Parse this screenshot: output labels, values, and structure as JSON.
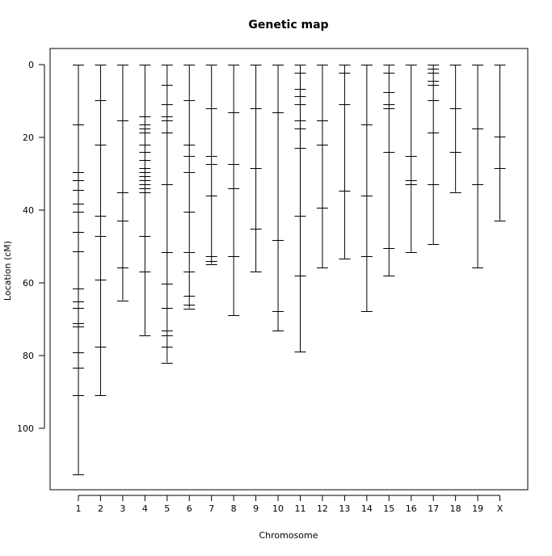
{
  "chart_data": {
    "type": "genetic_map",
    "title": "Genetic map",
    "xlabel": "Chromosome",
    "ylabel": "Location (cM)",
    "ylim": [
      0,
      117
    ],
    "y_reversed": true,
    "yticks": [
      0,
      20,
      40,
      60,
      80,
      100
    ],
    "grid": false,
    "chromosomes": [
      {
        "name": "1",
        "markers": [
          0,
          16.4,
          29.5,
          31.7,
          34.4,
          38.3,
          40.4,
          46.1,
          51.4,
          61.5,
          65,
          66.9,
          71.1,
          72,
          79,
          83.3,
          90.9,
          112.6
        ]
      },
      {
        "name": "2",
        "markers": [
          0,
          9.8,
          21.9,
          41.5,
          47,
          59.1,
          77.6,
          90.9
        ]
      },
      {
        "name": "3",
        "markers": [
          0,
          15.3,
          35,
          42.8,
          55.8,
          64.8
        ]
      },
      {
        "name": "4",
        "markers": [
          0,
          14.2,
          16.4,
          17.5,
          18.6,
          21.9,
          24.1,
          26.3,
          28.5,
          29.6,
          30.7,
          31.8,
          32.8,
          34,
          35.1,
          47.1,
          56.9,
          74.4
        ]
      },
      {
        "name": "5",
        "markers": [
          0,
          5.5,
          10.9,
          14.2,
          15.3,
          18.6,
          32.8,
          51.6,
          60.2,
          66.9,
          73.2,
          74.4,
          77.6,
          81.9
        ]
      },
      {
        "name": "6",
        "markers": [
          0,
          9.8,
          22,
          25.2,
          29.6,
          40.5,
          51.6,
          56.9,
          63.6,
          66.1,
          67
        ]
      },
      {
        "name": "7",
        "markers": [
          0,
          12,
          25.2,
          27.4,
          36.1,
          52.6,
          53.9,
          54.8
        ]
      },
      {
        "name": "8",
        "markers": [
          0,
          13.1,
          27.4,
          33.9,
          52.6,
          68.9
        ]
      },
      {
        "name": "9",
        "markers": [
          0,
          12,
          28.5,
          45,
          56.9
        ]
      },
      {
        "name": "10",
        "markers": [
          0,
          13.1,
          48.3,
          67.8,
          73.2
        ]
      },
      {
        "name": "11",
        "markers": [
          0,
          2.2,
          6.6,
          8.7,
          10.9,
          15.3,
          17.5,
          22.9,
          41.6,
          58,
          78.9
        ]
      },
      {
        "name": "12",
        "markers": [
          0,
          15.3,
          22,
          39.3,
          55.8
        ]
      },
      {
        "name": "13",
        "markers": [
          0,
          2.2,
          10.9,
          34.6,
          53.3
        ]
      },
      {
        "name": "14",
        "markers": [
          0,
          16.4,
          36.1,
          52.6,
          67.8
        ]
      },
      {
        "name": "15",
        "markers": [
          0,
          2.2,
          7.6,
          10.9,
          12,
          24.1,
          50.4,
          58.1
        ]
      },
      {
        "name": "16",
        "markers": [
          0,
          25.2,
          31.7,
          32.8,
          51.5
        ]
      },
      {
        "name": "17",
        "markers": [
          0,
          1.1,
          2.2,
          4.4,
          5.5,
          9.8,
          18.6,
          32.8,
          49.3
        ]
      },
      {
        "name": "18",
        "markers": [
          0,
          12,
          24.1,
          35
        ]
      },
      {
        "name": "19",
        "markers": [
          0,
          17.5,
          32.8,
          55.8
        ]
      },
      {
        "name": "X",
        "markers": [
          0,
          19.7,
          28.5,
          42.8
        ]
      }
    ]
  }
}
